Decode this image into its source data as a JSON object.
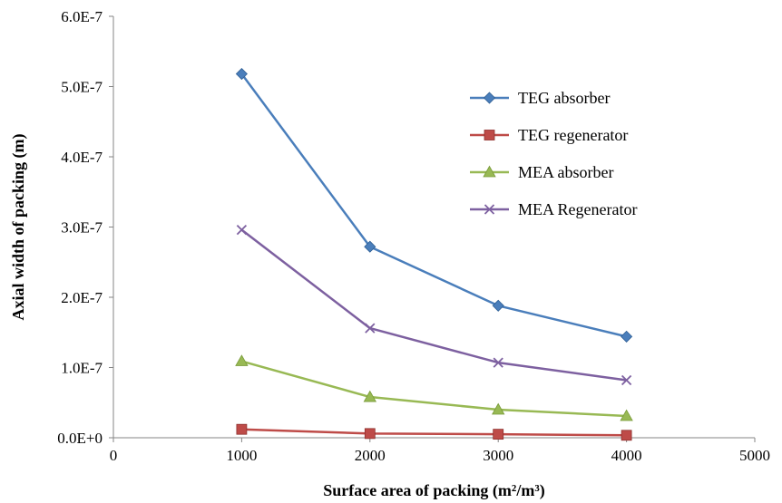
{
  "chart_data": {
    "type": "line",
    "title": "",
    "xlabel": "Surface area of packing (m²/m³)",
    "ylabel": "Axial width of packing (m)",
    "xlim": [
      0,
      5000
    ],
    "ylim": [
      0,
      6e-07
    ],
    "x_ticks": [
      "0",
      "1000",
      "2000",
      "3000",
      "4000",
      "5000"
    ],
    "y_ticks": [
      "0.0E+0",
      "1.0E-7",
      "2.0E-7",
      "3.0E-7",
      "4.0E-7",
      "5.0E-7",
      "6.0E-7"
    ],
    "grid": false,
    "legend_position": "top-right",
    "x": [
      1000,
      2000,
      3000,
      4000
    ],
    "series": [
      {
        "name": "TEG absorber",
        "values": [
          5.18e-07,
          2.72e-07,
          1.88e-07,
          1.44e-07
        ],
        "color": "#4A7EBB",
        "marker": "diamond"
      },
      {
        "name": "TEG regenerator",
        "values": [
          1.2e-08,
          6e-09,
          5e-09,
          3.5e-09
        ],
        "color": "#BE4B48",
        "marker": "square"
      },
      {
        "name": "MEA absorber",
        "values": [
          1.09e-07,
          5.8e-08,
          4e-08,
          3.1e-08
        ],
        "color": "#98B954",
        "marker": "triangle"
      },
      {
        "name": "MEA Regenerator",
        "values": [
          2.96e-07,
          1.56e-07,
          1.07e-07,
          8.2e-08
        ],
        "color": "#7D60A0",
        "marker": "x"
      }
    ]
  }
}
